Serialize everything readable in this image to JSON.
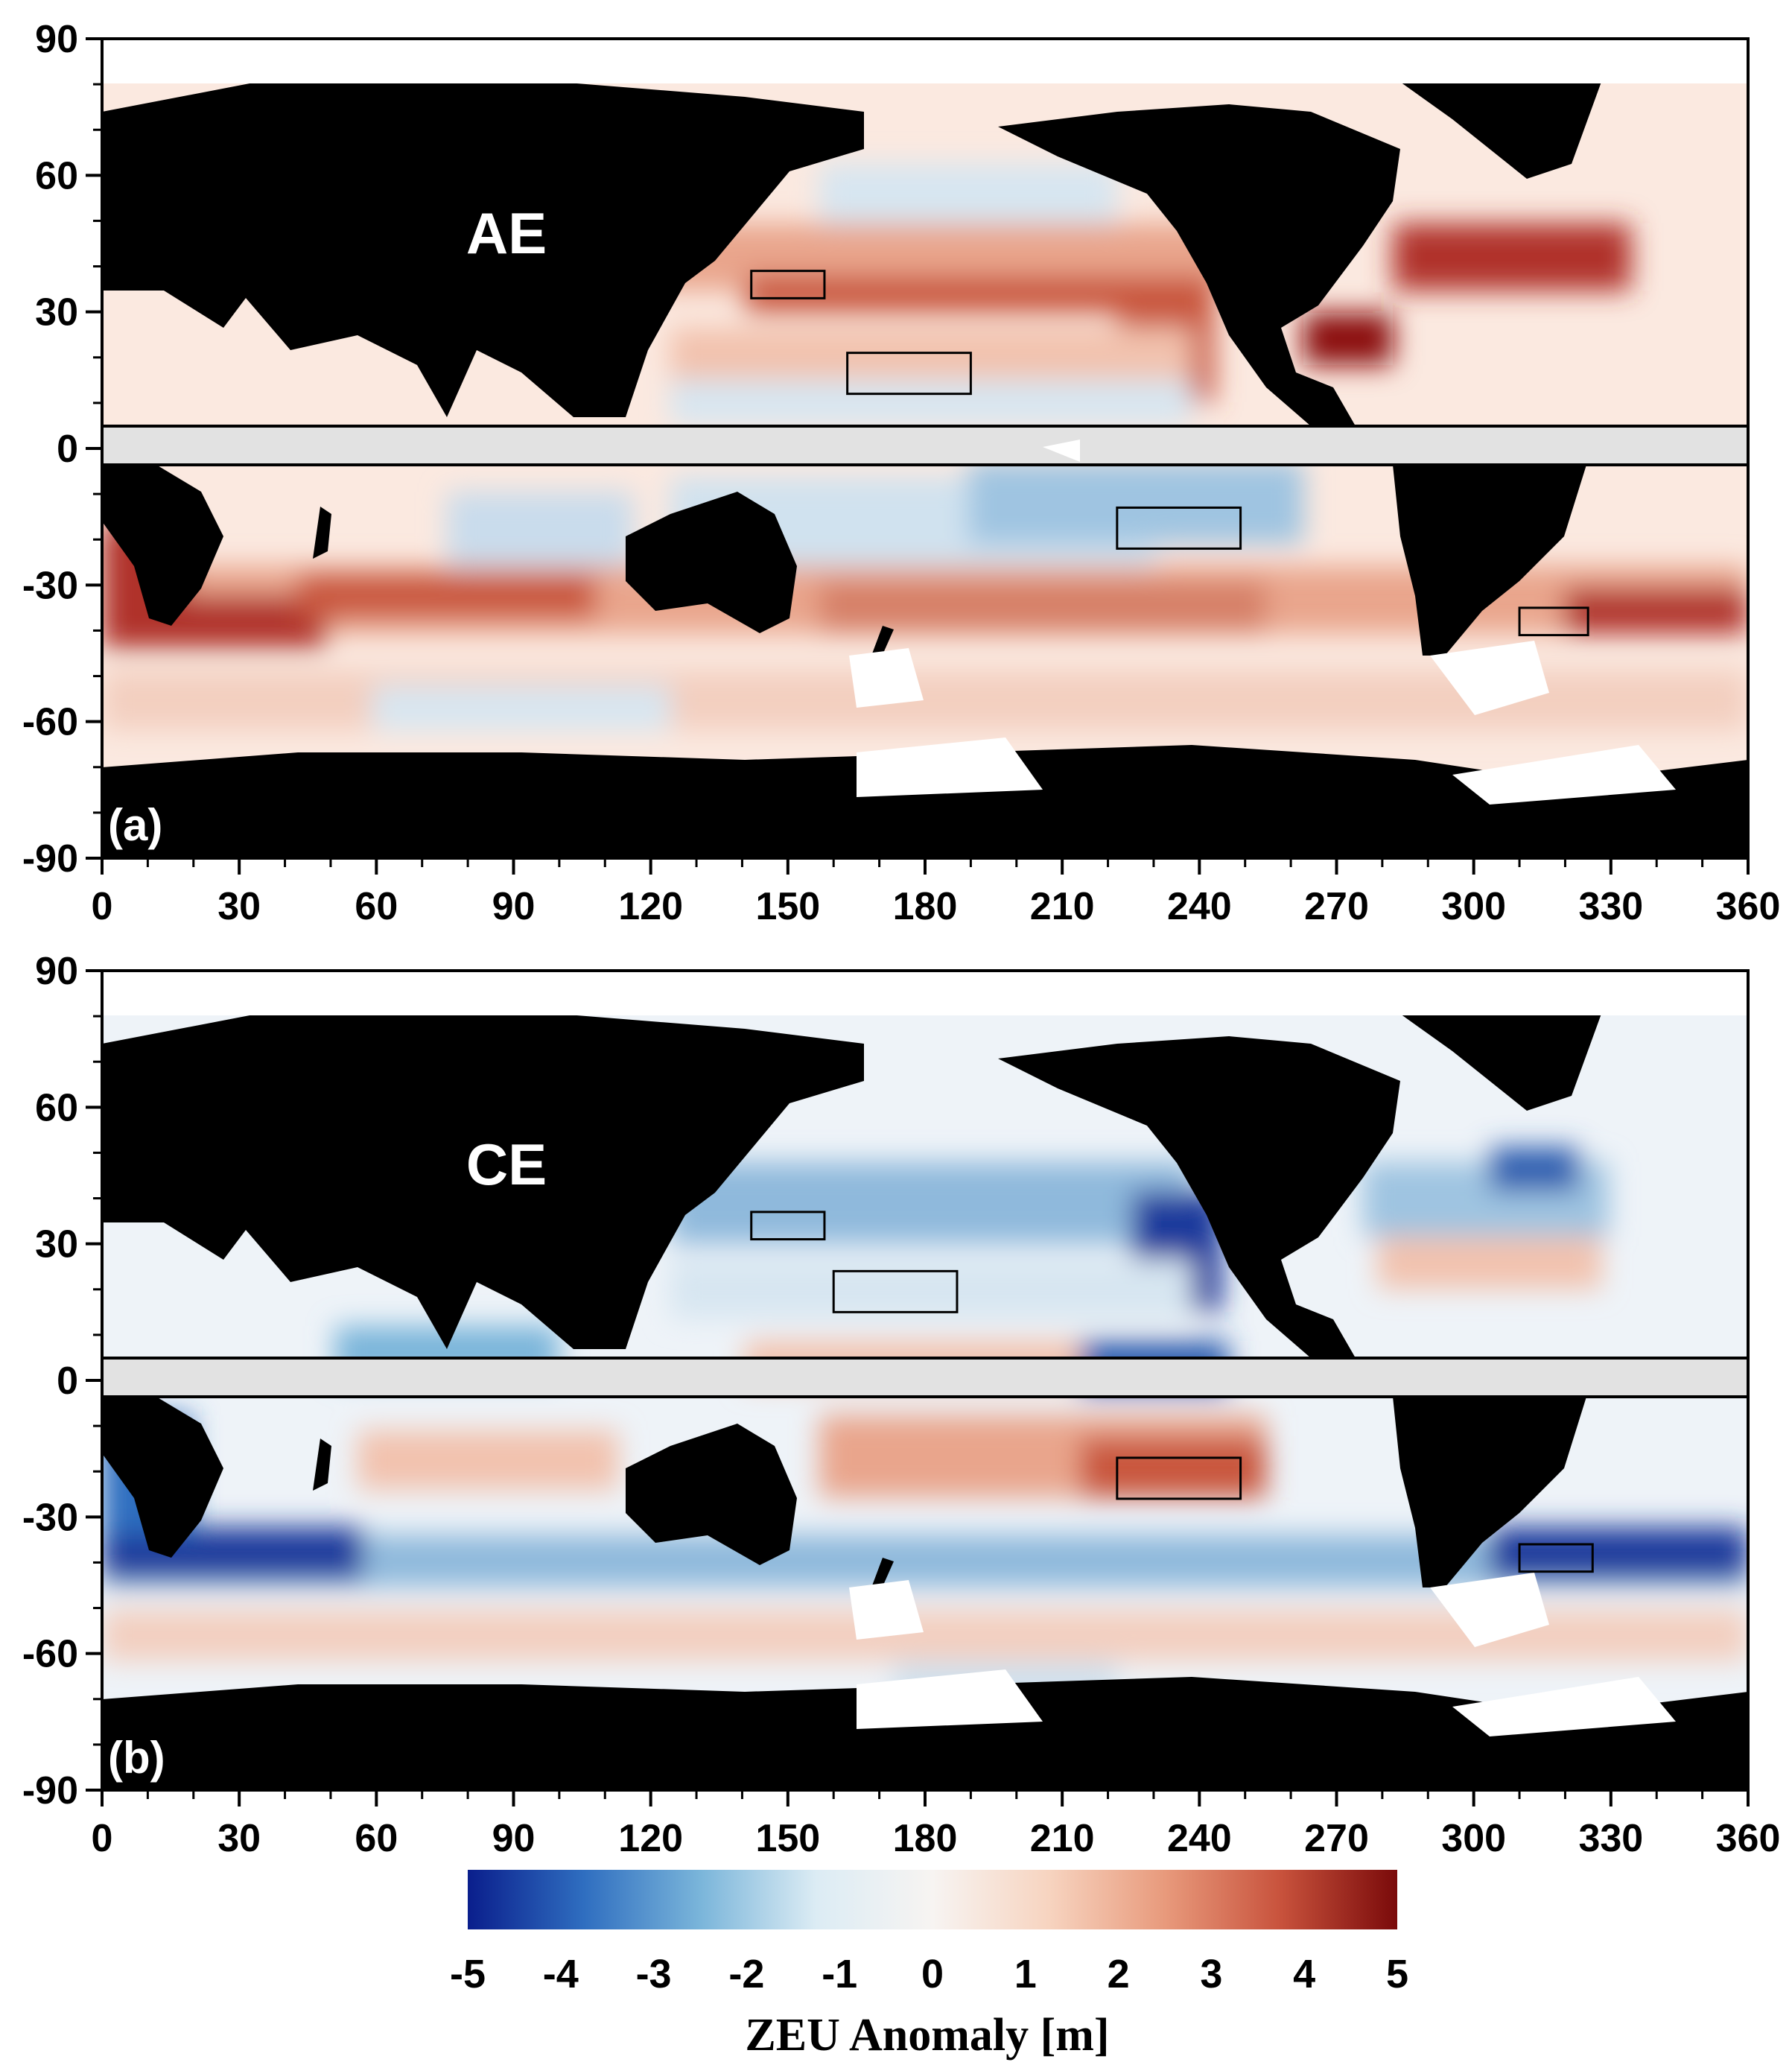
{
  "figure": {
    "panels": [
      {
        "letter": "(a)",
        "tag": "AE",
        "boxes": [
          {
            "lon": [
              142,
              158
            ],
            "lat": [
              33,
              39
            ]
          },
          {
            "lon": [
              163,
              190
            ],
            "lat": [
              12,
              21
            ]
          },
          {
            "lon": [
              222,
              249
            ],
            "lat": [
              -22,
              -13
            ]
          },
          {
            "lon": [
              310,
              325
            ],
            "lat": [
              -41,
              -35
            ]
          }
        ]
      },
      {
        "letter": "(b)",
        "tag": "CE",
        "boxes": [
          {
            "lon": [
              142,
              158
            ],
            "lat": [
              31,
              37
            ]
          },
          {
            "lon": [
              160,
              187
            ],
            "lat": [
              15,
              24
            ]
          },
          {
            "lon": [
              222,
              249
            ],
            "lat": [
              -26,
              -17
            ]
          },
          {
            "lon": [
              310,
              326
            ],
            "lat": [
              -42,
              -36
            ]
          }
        ]
      }
    ],
    "x_ticks": [
      "0",
      "30",
      "60",
      "90",
      "120",
      "150",
      "180",
      "210",
      "240",
      "270",
      "300",
      "330",
      "360"
    ],
    "y_ticks": [
      "90",
      "60",
      "30",
      "0",
      "-30",
      "-60",
      "-90"
    ],
    "colorbar": {
      "title": "ZEU Anomaly [m]",
      "ticks": [
        "-5",
        "-4",
        "-3",
        "-2",
        "-1",
        "0",
        "1",
        "2",
        "3",
        "4",
        "5"
      ],
      "range": [
        -5,
        5
      ],
      "colors": [
        "#0a1e8c",
        "#2f6ec0",
        "#7ab5da",
        "#dcecf4",
        "#f7f4f2",
        "#f7d4c0",
        "#e89a7c",
        "#c8523c",
        "#7a0a0a"
      ]
    },
    "colors": {
      "land": "#000000",
      "equator_band": "#e2e2e2",
      "ocean_warm": "#f3c2ad",
      "ocean_cool": "#c9dcec",
      "ice": "#ffffff"
    }
  }
}
